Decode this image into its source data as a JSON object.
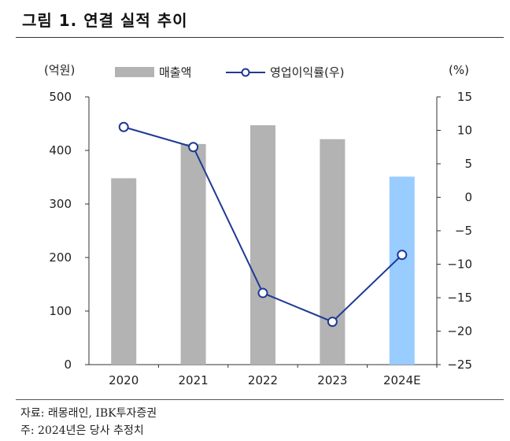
{
  "title": "그림 1. 연결 실적 추이",
  "chart_data": {
    "type": "bar+line",
    "categories": [
      "2020",
      "2021",
      "2022",
      "2023",
      "2024E"
    ],
    "series": [
      {
        "name": "매출액",
        "kind": "bar",
        "axis": "left",
        "values": [
          348,
          412,
          447,
          421,
          351
        ],
        "colors": [
          "#b3b3b3",
          "#b3b3b3",
          "#b3b3b3",
          "#b3b3b3",
          "#99ccff"
        ]
      },
      {
        "name": "영업이익률(우)",
        "kind": "line",
        "axis": "right",
        "values": [
          10.5,
          7.5,
          -14.3,
          -18.6,
          -8.6
        ],
        "color": "#1f3a93"
      }
    ],
    "left_axis": {
      "label": "(억원)",
      "ylim": [
        0,
        500
      ],
      "ticks": [
        0,
        100,
        200,
        300,
        400,
        500
      ]
    },
    "right_axis": {
      "label": "(%)",
      "ylim": [
        -25,
        15
      ],
      "ticks": [
        15,
        10,
        5,
        0,
        -5,
        -10,
        -15,
        -20,
        -25
      ]
    },
    "legend": [
      "매출액",
      "영업이익률(우)"
    ]
  },
  "notes": {
    "source": "자료: 래몽래인, IBK투자증권",
    "footnote": "주: 2024년은 당사 추정치"
  }
}
